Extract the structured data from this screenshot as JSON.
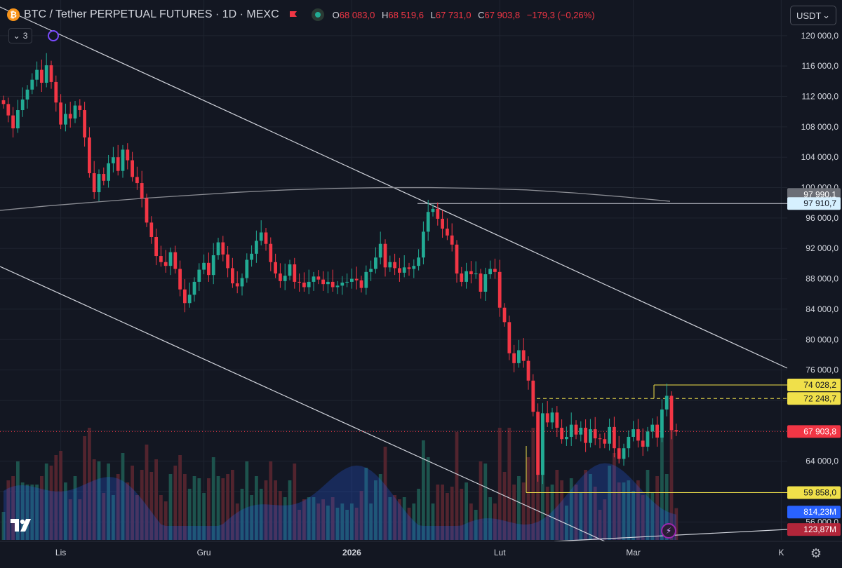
{
  "header": {
    "symbol_icon": "bitcoin-icon",
    "title": "BTC / Tether PERPETUAL FUTURES · 1D · MEXC",
    "ohlc": [
      {
        "label": "O",
        "value": "68 083,0"
      },
      {
        "label": "H",
        "value": "68 519,6"
      },
      {
        "label": "L",
        "value": "67 731,0"
      },
      {
        "label": "C",
        "value": "67 903,8"
      }
    ],
    "change": "−179,3 (−0,26%)"
  },
  "collapse_count": "3",
  "currency": {
    "label": "USDT",
    "icon": "chevron-down-icon"
  },
  "colors": {
    "background": "#131722",
    "up": "#22ab94",
    "down": "#f23645",
    "grid": "#1f2430",
    "axis_text": "#d1d4dc",
    "level_yellow": "#f0e04a",
    "volume_area": "#2962ff",
    "trend_line": "#d1d4dc",
    "ma_line": "#8b8d94"
  },
  "chart_data": {
    "type": "candlestick",
    "title": "BTC / Tether PERPETUAL FUTURES · 1D · MEXC",
    "ylim": [
      54000,
      121000
    ],
    "y_ticks": [
      {
        "v": 120000,
        "label": "120 000,0"
      },
      {
        "v": 116000,
        "label": "116 000,0"
      },
      {
        "v": 112000,
        "label": "112 000,0"
      },
      {
        "v": 108000,
        "label": "108 000,0"
      },
      {
        "v": 104000,
        "label": "104 000,0"
      },
      {
        "v": 100000,
        "label": "100 000,0"
      },
      {
        "v": 96000,
        "label": "96 000,0"
      },
      {
        "v": 92000,
        "label": "92 000,0"
      },
      {
        "v": 88000,
        "label": "88 000,0"
      },
      {
        "v": 84000,
        "label": "84 000,0"
      },
      {
        "v": 80000,
        "label": "80 000,0"
      },
      {
        "v": 76000,
        "label": "76 000,0"
      },
      {
        "v": 72000,
        "label": "72 000,0"
      },
      {
        "v": 68000,
        "label": "68 000,0"
      },
      {
        "v": 64000,
        "label": "64 000,0"
      },
      {
        "v": 60000,
        "label": "60 000,0"
      },
      {
        "v": 56000,
        "label": "56 000,0"
      }
    ],
    "x_labels": [
      {
        "i": 12,
        "label": "Lis",
        "bold": false
      },
      {
        "i": 42,
        "label": "Gru",
        "bold": false
      },
      {
        "i": 73,
        "label": "2026",
        "bold": true
      },
      {
        "i": 104,
        "label": "Lut",
        "bold": false
      },
      {
        "i": 132,
        "label": "Mar",
        "bold": false
      },
      {
        "i": 163,
        "label": "K",
        "bold": false
      }
    ],
    "x_count": 165,
    "closes": [
      111000,
      109500,
      107800,
      110200,
      111600,
      112900,
      114200,
      115500,
      113800,
      116100,
      113900,
      111200,
      108300,
      109700,
      109100,
      110800,
      110200,
      106600,
      101900,
      99400,
      101800,
      100900,
      103200,
      104000,
      102200,
      105000,
      103600,
      101400,
      100600,
      98600,
      95400,
      93500,
      91000,
      90200,
      89700,
      91500,
      89300,
      86600,
      84800,
      85900,
      87600,
      89200,
      90100,
      88500,
      91100,
      92800,
      91200,
      89400,
      87400,
      87000,
      88100,
      90500,
      91300,
      93000,
      94100,
      92600,
      90200,
      88700,
      87700,
      88400,
      89900,
      87600,
      87500,
      86900,
      87600,
      88300,
      87900,
      87300,
      87600,
      86900,
      87100,
      87500,
      87600,
      88000,
      87800,
      86800,
      88900,
      89300,
      90800,
      92600,
      89500,
      90200,
      89400,
      88800,
      89500,
      89300,
      89700,
      90800,
      94200,
      96800,
      97200,
      95900,
      94600,
      93700,
      92500,
      88700,
      87600,
      89000,
      88600,
      88700,
      86300,
      88600,
      89300,
      88900,
      84200,
      82300,
      78200,
      76900,
      78600,
      77200,
      74600,
      70500,
      62200,
      70300,
      69100,
      70400,
      68400,
      66900,
      67200,
      68800,
      67500,
      68400,
      66400,
      68200,
      67000,
      66900,
      66300,
      68500,
      65700,
      64300,
      65700,
      67200,
      68200,
      66700,
      65900,
      67900,
      68800,
      67100,
      70800,
      72600,
      68083,
      67904
    ],
    "series": [
      {
        "name": "MA",
        "values": [
          97000,
          97600,
          98100,
          98600,
          99000,
          99400,
          99700,
          99900,
          100000,
          100000,
          99900,
          99700,
          99300,
          98800,
          98200
        ]
      },
      {
        "name": "Volume (M)",
        "last": 814.23
      }
    ],
    "levels": [
      {
        "name": "previous-high",
        "value": 97910.7,
        "label": "97 910,7"
      },
      {
        "name": "range-high",
        "value": 74028.2,
        "label": "74 028,2"
      },
      {
        "name": "range-mid",
        "value": 72248.7,
        "label": "72 248,7"
      },
      {
        "name": "range-low",
        "value": 59858.0,
        "label": "59 858,0"
      }
    ],
    "price_tags": [
      {
        "name": "ma-value",
        "value": 97990.1,
        "label": "97 990,1"
      },
      {
        "name": "last-price",
        "value": 67903.8,
        "label": "67 903,8"
      },
      {
        "name": "volume-value",
        "value": 56400,
        "label": "814,23M"
      },
      {
        "name": "volume-ma",
        "value": 54700,
        "label": "123,87M"
      }
    ]
  }
}
